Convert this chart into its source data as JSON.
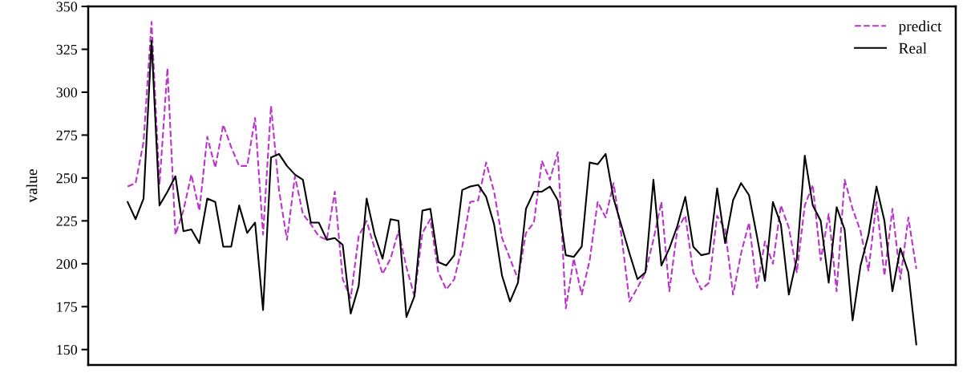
{
  "chart_data": {
    "type": "line",
    "ylabel": "value",
    "ylim": [
      141,
      350
    ],
    "yticks": [
      150,
      175,
      200,
      225,
      250,
      275,
      300,
      325,
      350
    ],
    "tick_labels": "y",
    "legend": "top right",
    "categories": [
      null,
      null,
      null,
      null,
      null,
      null,
      null,
      null,
      null,
      null,
      null,
      null,
      null,
      null,
      null,
      null,
      null,
      null,
      null,
      null,
      null,
      null,
      null,
      null,
      null,
      null,
      null,
      null,
      null,
      null,
      null,
      null,
      null,
      null,
      null,
      null,
      null,
      null,
      null,
      null,
      null,
      null,
      null,
      null,
      null,
      null,
      null,
      null,
      null,
      null,
      null,
      null,
      null,
      null,
      null,
      null,
      null,
      null,
      null,
      null,
      null,
      null,
      null,
      null,
      null,
      null,
      null,
      null,
      null,
      null,
      null,
      null,
      null,
      null,
      null,
      null,
      null,
      null,
      null,
      null,
      null,
      null,
      null,
      null,
      null,
      null,
      null,
      null,
      null,
      null,
      null,
      null,
      null,
      null,
      null,
      null,
      null,
      null,
      null,
      null
    ],
    "series": [
      {
        "name": "predict",
        "color": "#bb33cc",
        "line_style": "dashed",
        "values": [
          245,
          247,
          271,
          341,
          246,
          314,
          217,
          231,
          252,
          231,
          274,
          256,
          281,
          268,
          257,
          257,
          285,
          217,
          292,
          243,
          214,
          251,
          229,
          223,
          216,
          214,
          242,
          191,
          180,
          216,
          225,
          209,
          194,
          203,
          219,
          198,
          181,
          218,
          226,
          195,
          185,
          191,
          210,
          236,
          237,
          259,
          242,
          215,
          203,
          191,
          218,
          224,
          260,
          249,
          265,
          174,
          203,
          182,
          202,
          236,
          227,
          247,
          216,
          178,
          186,
          195,
          214,
          236,
          184,
          220,
          228,
          195,
          185,
          189,
          228,
          220,
          182,
          206,
          224,
          186,
          213,
          200,
          234,
          221,
          195,
          234,
          246,
          202,
          229,
          184,
          249,
          232,
          219,
          196,
          236,
          193,
          232,
          191,
          227,
          197
        ]
      },
      {
        "name": "Real",
        "color": "#000000",
        "line_style": "solid",
        "values": [
          236,
          226,
          238,
          330,
          234,
          242,
          251,
          219,
          220,
          212,
          238,
          236,
          210,
          210,
          234,
          218,
          224,
          173,
          262,
          264,
          257,
          252,
          249,
          224,
          224,
          214,
          215,
          211,
          171,
          187,
          238,
          217,
          203,
          226,
          225,
          169,
          181,
          231,
          232,
          201,
          199,
          205,
          243,
          245,
          246,
          239,
          223,
          193,
          178,
          189,
          232,
          242,
          242,
          245,
          237,
          205,
          204,
          210,
          259,
          258,
          264,
          238,
          222,
          206,
          191,
          195,
          249,
          199,
          209,
          222,
          239,
          210,
          205,
          206,
          244,
          212,
          237,
          247,
          240,
          216,
          190,
          236,
          223,
          182,
          203,
          263,
          234,
          225,
          189,
          233,
          220,
          167,
          199,
          217,
          245,
          225,
          184,
          209,
          195,
          153
        ]
      }
    ]
  }
}
